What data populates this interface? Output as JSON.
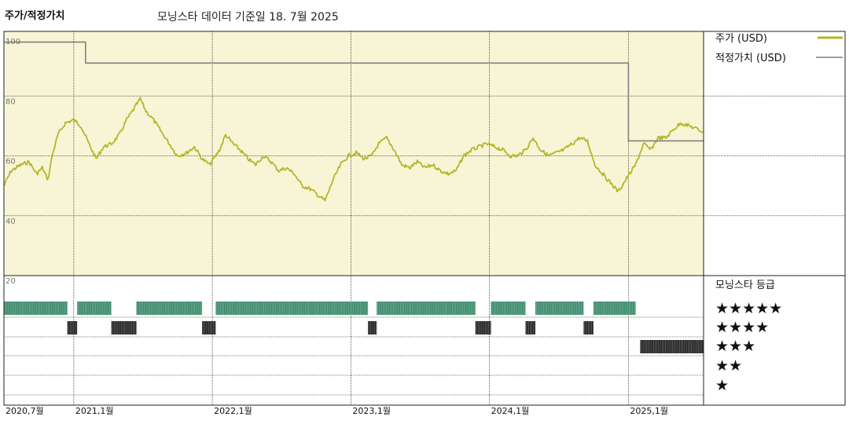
{
  "header": {
    "title": "주가/적정가치",
    "source_note": "모닝스타 데이터 기준일 18. 7월 2025"
  },
  "legend": {
    "price": "주가 (USD)",
    "fair_value": "적정가치 (USD)",
    "price_color": "#b5b52a",
    "fair_value_color": "#7f7f7f"
  },
  "rating_panel": {
    "title": "모닝스타 등급",
    "levels": [
      "★★★★★",
      "★★★★",
      "★★★",
      "★★",
      "★"
    ],
    "five_star_color": "#3a8a6a",
    "four_star_color": "#222222",
    "three_star_color": "#222222"
  },
  "chart_data": {
    "type": "line",
    "title": "주가/적정가치",
    "xlabel": "",
    "ylabel": "",
    "ylim": [
      20,
      100
    ],
    "y_ticks": [
      20,
      40,
      60,
      80,
      100
    ],
    "x_range": [
      "2020-07-01",
      "2025-07-18"
    ],
    "x_ticks": [
      {
        "date": "2020-07-01",
        "label": "2020,7월"
      },
      {
        "date": "2021-01-01",
        "label": "2021,1월"
      },
      {
        "date": "2022-01-01",
        "label": "2022,1월"
      },
      {
        "date": "2023-01-01",
        "label": "2023,1월"
      },
      {
        "date": "2024-01-01",
        "label": "2024,1월"
      },
      {
        "date": "2025-01-01",
        "label": "2025,1월"
      }
    ],
    "background_color": "#f8f5d6",
    "series": [
      {
        "name": "주가 (USD)",
        "color": "#b5b52a",
        "points": [
          [
            "2020-07-01",
            50
          ],
          [
            "2020-07-20",
            55
          ],
          [
            "2020-08-15",
            57
          ],
          [
            "2020-09-05",
            58
          ],
          [
            "2020-09-25",
            54
          ],
          [
            "2020-10-10",
            56
          ],
          [
            "2020-10-25",
            52
          ],
          [
            "2020-11-05",
            60
          ],
          [
            "2020-11-20",
            67
          ],
          [
            "2020-12-10",
            71
          ],
          [
            "2021-01-01",
            72
          ],
          [
            "2021-01-20",
            70
          ],
          [
            "2021-02-10",
            64
          ],
          [
            "2021-03-01",
            59
          ],
          [
            "2021-03-20",
            63
          ],
          [
            "2021-04-10",
            64
          ],
          [
            "2021-05-01",
            67
          ],
          [
            "2021-05-20",
            72
          ],
          [
            "2021-06-10",
            76
          ],
          [
            "2021-06-25",
            79
          ],
          [
            "2021-07-10",
            75
          ],
          [
            "2021-07-30",
            72
          ],
          [
            "2021-08-20",
            68
          ],
          [
            "2021-09-10",
            64
          ],
          [
            "2021-10-01",
            60
          ],
          [
            "2021-10-25",
            61
          ],
          [
            "2021-11-15",
            63
          ],
          [
            "2021-12-05",
            59
          ],
          [
            "2021-12-25",
            57
          ],
          [
            "2022-01-20",
            62
          ],
          [
            "2022-02-05",
            67
          ],
          [
            "2022-02-25",
            64
          ],
          [
            "2022-03-15",
            62
          ],
          [
            "2022-04-05",
            59
          ],
          [
            "2022-04-25",
            57
          ],
          [
            "2022-05-15",
            60
          ],
          [
            "2022-06-05",
            58
          ],
          [
            "2022-06-25",
            55
          ],
          [
            "2022-07-15",
            56
          ],
          [
            "2022-08-05",
            54
          ],
          [
            "2022-08-25",
            50
          ],
          [
            "2022-09-15",
            49
          ],
          [
            "2022-10-05",
            47
          ],
          [
            "2022-10-25",
            45
          ],
          [
            "2022-11-15",
            52
          ],
          [
            "2022-12-05",
            57
          ],
          [
            "2022-12-25",
            60
          ],
          [
            "2023-01-15",
            61
          ],
          [
            "2023-02-05",
            59
          ],
          [
            "2023-02-25",
            60
          ],
          [
            "2023-03-15",
            64
          ],
          [
            "2023-04-05",
            66
          ],
          [
            "2023-04-25",
            62
          ],
          [
            "2023-05-15",
            57
          ],
          [
            "2023-06-05",
            56
          ],
          [
            "2023-06-25",
            58
          ],
          [
            "2023-07-15",
            56
          ],
          [
            "2023-08-05",
            57
          ],
          [
            "2023-08-25",
            55
          ],
          [
            "2023-09-15",
            54
          ],
          [
            "2023-10-05",
            55
          ],
          [
            "2023-10-25",
            60
          ],
          [
            "2023-11-15",
            62
          ],
          [
            "2023-12-05",
            63
          ],
          [
            "2023-12-25",
            64
          ],
          [
            "2024-01-15",
            63
          ],
          [
            "2024-02-05",
            62
          ],
          [
            "2024-02-25",
            60
          ],
          [
            "2024-03-15",
            60
          ],
          [
            "2024-04-05",
            62
          ],
          [
            "2024-04-25",
            66
          ],
          [
            "2024-05-15",
            62
          ],
          [
            "2024-06-05",
            60
          ],
          [
            "2024-06-25",
            61
          ],
          [
            "2024-07-15",
            62
          ],
          [
            "2024-08-05",
            64
          ],
          [
            "2024-08-25",
            66
          ],
          [
            "2024-09-15",
            65
          ],
          [
            "2024-10-05",
            57
          ],
          [
            "2024-10-25",
            54
          ],
          [
            "2024-11-15",
            51
          ],
          [
            "2024-12-05",
            48
          ],
          [
            "2024-12-25",
            52
          ],
          [
            "2025-01-20",
            57
          ],
          [
            "2025-02-10",
            64
          ],
          [
            "2025-03-01",
            62
          ],
          [
            "2025-03-20",
            66
          ],
          [
            "2025-04-10",
            66
          ],
          [
            "2025-05-01",
            69
          ],
          [
            "2025-05-20",
            71
          ],
          [
            "2025-06-10",
            70
          ],
          [
            "2025-06-30",
            69
          ],
          [
            "2025-07-18",
            68
          ]
        ]
      },
      {
        "name": "적정가치 (USD)",
        "color": "#7f7f7f",
        "points": [
          [
            "2020-07-01",
            98
          ],
          [
            "2021-02-01",
            98
          ],
          [
            "2021-02-01",
            91
          ],
          [
            "2025-01-01",
            91
          ],
          [
            "2025-01-01",
            65
          ],
          [
            "2025-07-18",
            65
          ]
        ]
      }
    ],
    "rating_bands": [
      {
        "stars": 5,
        "from": "2020-07-01",
        "to": "2020-12-15"
      },
      {
        "stars": 5,
        "from": "2021-01-10",
        "to": "2021-04-10"
      },
      {
        "stars": 5,
        "from": "2021-06-15",
        "to": "2021-12-05"
      },
      {
        "stars": 5,
        "from": "2022-01-10",
        "to": "2023-02-15"
      },
      {
        "stars": 5,
        "from": "2023-03-10",
        "to": "2023-11-25"
      },
      {
        "stars": 5,
        "from": "2024-01-05",
        "to": "2024-04-05"
      },
      {
        "stars": 5,
        "from": "2024-05-01",
        "to": "2024-09-05"
      },
      {
        "stars": 5,
        "from": "2024-10-01",
        "to": "2025-01-20"
      },
      {
        "stars": 4,
        "from": "2020-12-15",
        "to": "2021-01-10"
      },
      {
        "stars": 4,
        "from": "2021-04-10",
        "to": "2021-06-15"
      },
      {
        "stars": 4,
        "from": "2021-12-05",
        "to": "2022-01-10"
      },
      {
        "stars": 4,
        "from": "2023-02-15",
        "to": "2023-03-10"
      },
      {
        "stars": 4,
        "from": "2023-11-25",
        "to": "2024-01-05"
      },
      {
        "stars": 4,
        "from": "2024-04-05",
        "to": "2024-05-01"
      },
      {
        "stars": 4,
        "from": "2024-09-05",
        "to": "2024-10-01"
      },
      {
        "stars": 3,
        "from": "2025-02-01",
        "to": "2025-07-18"
      }
    ]
  }
}
